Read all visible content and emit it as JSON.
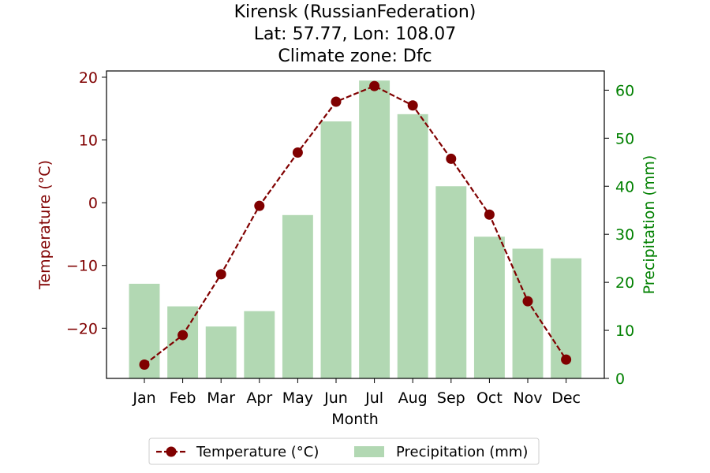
{
  "chart_data": {
    "type": "bar+line",
    "title_lines": [
      "Kirensk (RussianFederation)",
      "Lat: 57.77, Lon: 108.07",
      "Climate zone: Dfc"
    ],
    "categories": [
      "Jan",
      "Feb",
      "Mar",
      "Apr",
      "May",
      "Jun",
      "Jul",
      "Aug",
      "Sep",
      "Oct",
      "Nov",
      "Dec"
    ],
    "xlabel": "Month",
    "ylabel_left": "Temperature (°C)",
    "ylabel_right": "Precipitation (mm)",
    "ylim_left": [
      -28,
      21
    ],
    "ylim_right": [
      0,
      64
    ],
    "yticks_left": [
      20,
      10,
      0,
      -10,
      -20
    ],
    "yticks_left_labels": [
      "20",
      "10",
      "0",
      "−10",
      "−20"
    ],
    "yticks_right": [
      0,
      10,
      20,
      30,
      40,
      50,
      60
    ],
    "yticks_right_labels": [
      "0",
      "10",
      "20",
      "30",
      "40",
      "50",
      "60"
    ],
    "grid": false,
    "legend_placement": "bottom-center",
    "series": [
      {
        "name": "Temperature (°C)",
        "kind": "line",
        "axis": "left",
        "style": "dashed-with-markers",
        "color": "#800000",
        "values": [
          -25.8,
          -21.1,
          -11.4,
          -0.5,
          8.0,
          16.1,
          18.6,
          15.5,
          7.0,
          -1.9,
          -15.7,
          -25.0
        ]
      },
      {
        "name": "Precipitation (mm)",
        "kind": "bar",
        "axis": "right",
        "color": "#b2d8b3",
        "values": [
          19.7,
          15.0,
          10.8,
          14.0,
          34.0,
          53.5,
          62.0,
          55.0,
          40.0,
          29.5,
          27.0,
          25.0
        ]
      }
    ],
    "colors": {
      "left_axis": "#800000",
      "right_axis": "#008000",
      "axis_line": "#000000"
    }
  }
}
